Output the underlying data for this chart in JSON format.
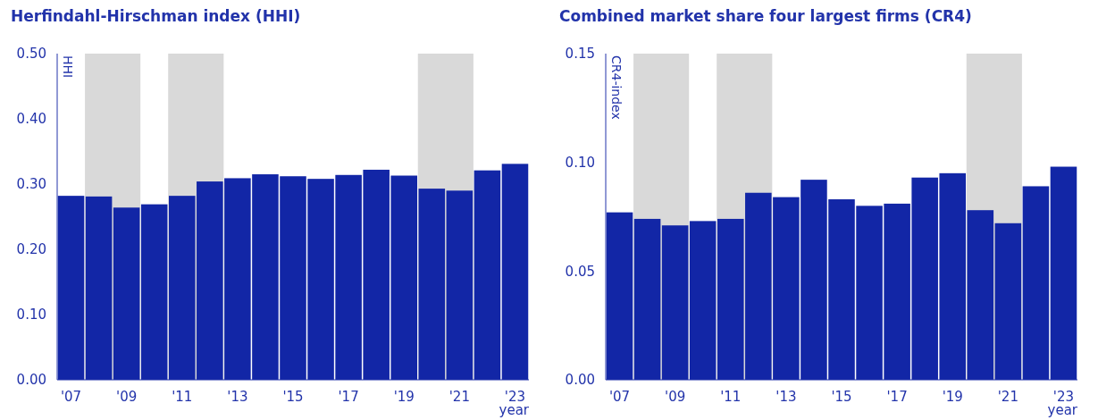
{
  "chart_data": [
    {
      "type": "bar",
      "title": "Herfindahl-Hirschman index (HHI)",
      "ylabel": "HHI",
      "xlabel": "year",
      "x": [
        2007,
        2008,
        2009,
        2010,
        2011,
        2012,
        2013,
        2014,
        2015,
        2016,
        2017,
        2018,
        2019,
        2020,
        2021,
        2022,
        2023
      ],
      "values": [
        0.282,
        0.281,
        0.264,
        0.269,
        0.282,
        0.304,
        0.309,
        0.315,
        0.312,
        0.308,
        0.314,
        0.322,
        0.313,
        0.293,
        0.29,
        0.321,
        0.331
      ],
      "color": "#1226a6",
      "xlim": [
        2006.5,
        2023.5
      ],
      "xticks": [
        {
          "value": 2007,
          "label": "'07"
        },
        {
          "value": 2009,
          "label": "'09"
        },
        {
          "value": 2011,
          "label": "'11"
        },
        {
          "value": 2013,
          "label": "'13"
        },
        {
          "value": 2015,
          "label": "'15"
        },
        {
          "value": 2017,
          "label": "'17"
        },
        {
          "value": 2019,
          "label": "'19"
        },
        {
          "value": 2021,
          "label": "'21"
        },
        {
          "value": 2023,
          "label": "'23"
        }
      ],
      "ylim": [
        0,
        0.5
      ],
      "yticks": [
        {
          "value": 0,
          "label": "0.00"
        },
        {
          "value": 0.1,
          "label": "0.10"
        },
        {
          "value": 0.2,
          "label": "0.20"
        },
        {
          "value": 0.3,
          "label": "0.30"
        },
        {
          "value": 0.4,
          "label": "0.40"
        },
        {
          "value": 0.5,
          "label": "0.50"
        }
      ],
      "bands": [
        {
          "axis": "x",
          "from": 2007.5,
          "to": 2009.5,
          "color": "#d9d9d9"
        },
        {
          "axis": "x",
          "from": 2010.5,
          "to": 2012.5,
          "color": "#d9d9d9"
        },
        {
          "axis": "x",
          "from": 2019.5,
          "to": 2021.5,
          "color": "#d9d9d9"
        }
      ]
    },
    {
      "type": "bar",
      "title": "Combined market share four largest firms (CR4)",
      "ylabel": "CR4-index",
      "xlabel": "year",
      "x": [
        2007,
        2008,
        2009,
        2010,
        2011,
        2012,
        2013,
        2014,
        2015,
        2016,
        2017,
        2018,
        2019,
        2020,
        2021,
        2022,
        2023
      ],
      "values": [
        0.077,
        0.074,
        0.071,
        0.073,
        0.074,
        0.086,
        0.084,
        0.092,
        0.083,
        0.08,
        0.081,
        0.093,
        0.095,
        0.078,
        0.072,
        0.089,
        0.098
      ],
      "color": "#1226a6",
      "xlim": [
        2006.5,
        2023.5
      ],
      "xticks": [
        {
          "value": 2007,
          "label": "'07"
        },
        {
          "value": 2009,
          "label": "'09"
        },
        {
          "value": 2011,
          "label": "'11"
        },
        {
          "value": 2013,
          "label": "'13"
        },
        {
          "value": 2015,
          "label": "'15"
        },
        {
          "value": 2017,
          "label": "'17"
        },
        {
          "value": 2019,
          "label": "'19"
        },
        {
          "value": 2021,
          "label": "'21"
        },
        {
          "value": 2023,
          "label": "'23"
        }
      ],
      "ylim": [
        0,
        0.15
      ],
      "yticks": [
        {
          "value": 0,
          "label": "0.00"
        },
        {
          "value": 0.05,
          "label": "0.05"
        },
        {
          "value": 0.1,
          "label": "0.10"
        },
        {
          "value": 0.15,
          "label": "0.15"
        }
      ],
      "bands": [
        {
          "axis": "x",
          "from": 2007.5,
          "to": 2009.5,
          "color": "#d9d9d9"
        },
        {
          "axis": "x",
          "from": 2010.5,
          "to": 2012.5,
          "color": "#d9d9d9"
        },
        {
          "axis": "x",
          "from": 2019.5,
          "to": 2021.5,
          "color": "#d9d9d9"
        }
      ]
    }
  ]
}
